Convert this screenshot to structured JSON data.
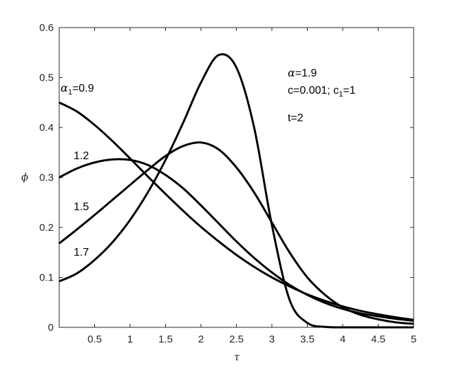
{
  "chart_data": {
    "type": "line",
    "xlabel": "τ",
    "ylabel": "ϕ",
    "xlim": [
      0,
      5
    ],
    "ylim": [
      0,
      0.6
    ],
    "xticks": [
      "0.5",
      "1",
      "1.5",
      "2",
      "2.5",
      "3",
      "3.5",
      "4",
      "4.5",
      "5"
    ],
    "yticks": [
      "0",
      "0.1",
      "0.2",
      "0.3",
      "0.4",
      "0.5",
      "0.6"
    ],
    "grid": false,
    "series_color": "#000000",
    "annotations": {
      "alpha_prefix": "α",
      "alpha_text": "=1.9",
      "params_text": "c=0.001;   c",
      "params_sub": "1",
      "params_tail": "=1",
      "time_text": "t=2",
      "alpha1_prefix": "α",
      "alpha1_sub": "1",
      "alpha1_tail": "=0.9"
    },
    "series": [
      {
        "label": "0.9",
        "x": [
          0,
          0.25,
          0.5,
          0.75,
          1,
          1.25,
          1.5,
          1.75,
          2,
          2.25,
          2.5,
          2.75,
          3,
          3.25,
          3.5,
          3.75,
          4,
          4.25,
          4.5,
          4.75,
          5
        ],
        "y": [
          0.45,
          0.432,
          0.405,
          0.373,
          0.338,
          0.302,
          0.267,
          0.233,
          0.201,
          0.172,
          0.145,
          0.121,
          0.1,
          0.082,
          0.066,
          0.053,
          0.042,
          0.033,
          0.026,
          0.02,
          0.015
        ]
      },
      {
        "label": "1.2",
        "x": [
          0,
          0.25,
          0.5,
          0.75,
          1,
          1.25,
          1.5,
          1.75,
          2,
          2.25,
          2.5,
          2.75,
          3,
          3.25,
          3.5,
          3.75,
          4,
          4.25,
          4.5,
          4.75,
          5
        ],
        "y": [
          0.3,
          0.318,
          0.33,
          0.336,
          0.335,
          0.325,
          0.305,
          0.278,
          0.244,
          0.208,
          0.172,
          0.139,
          0.11,
          0.085,
          0.065,
          0.049,
          0.037,
          0.028,
          0.022,
          0.017,
          0.013
        ]
      },
      {
        "label": "1.5",
        "x": [
          0,
          0.25,
          0.5,
          0.75,
          1,
          1.25,
          1.5,
          1.75,
          2,
          2.25,
          2.5,
          2.75,
          3,
          3.25,
          3.5,
          3.75,
          4,
          4.25,
          4.5,
          4.75,
          5
        ],
        "y": [
          0.168,
          0.196,
          0.225,
          0.255,
          0.285,
          0.315,
          0.343,
          0.363,
          0.37,
          0.356,
          0.32,
          0.27,
          0.21,
          0.15,
          0.1,
          0.065,
          0.04,
          0.025,
          0.016,
          0.01,
          0.007
        ]
      },
      {
        "label": "1.7",
        "x": [
          0,
          0.25,
          0.5,
          0.75,
          1,
          1.25,
          1.5,
          1.75,
          2,
          2.25,
          2.5,
          2.75,
          3,
          3.25,
          3.5,
          3.75,
          4,
          4.25,
          4.5,
          4.75,
          5
        ],
        "y": [
          0.092,
          0.108,
          0.135,
          0.17,
          0.215,
          0.27,
          0.335,
          0.41,
          0.49,
          0.545,
          0.52,
          0.4,
          0.205,
          0.055,
          0.009,
          0.001,
          0,
          0,
          0,
          0,
          0
        ]
      }
    ]
  }
}
